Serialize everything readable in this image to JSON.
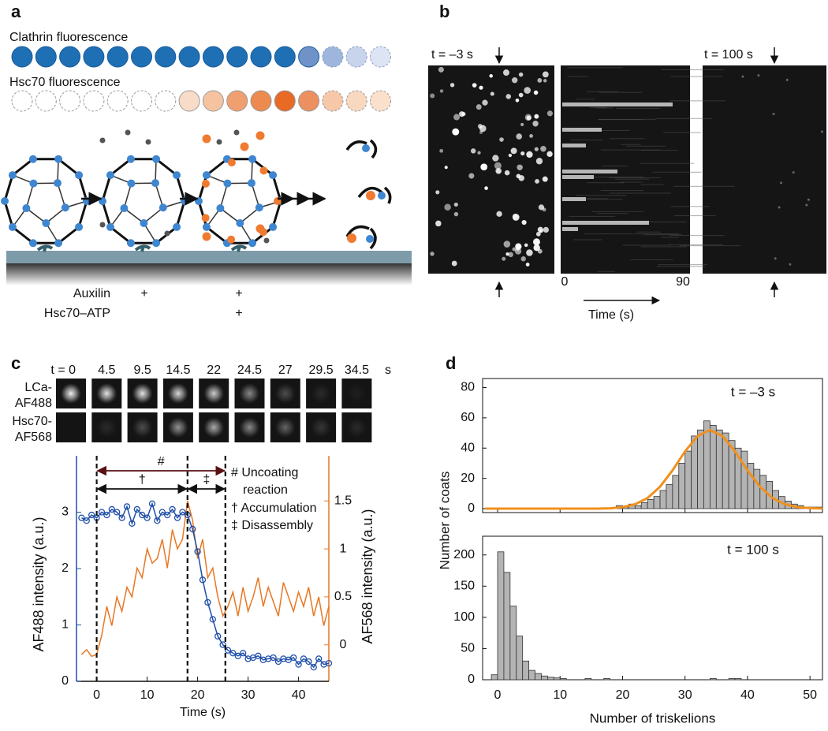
{
  "panel_a": {
    "label": "a",
    "clathrin_title": "Clathrin fluorescence",
    "hsc70_title": "Hsc70 fluorescence",
    "conditions": [
      {
        "name": "Auxilin",
        "step2": "+",
        "step3": "+"
      },
      {
        "name": "Hsc70–ATP",
        "step3": "+"
      }
    ]
  },
  "panel_b": {
    "label": "b",
    "t_start": "t = –3 s",
    "t_end": "t = 100 s",
    "kymo_start": "0",
    "kymo_end": "90",
    "time_label": "Time (s)"
  },
  "panel_c_images": {
    "label": "c",
    "times": [
      "t = 0",
      "4.5",
      "9.5",
      "14.5",
      "22",
      "24.5",
      "27",
      "29.5",
      "34.5"
    ],
    "unit": "s",
    "rows": [
      [
        "LCa-",
        "AF488"
      ],
      [
        "Hsc70-",
        "AF568"
      ]
    ]
  },
  "panel_d": {
    "label": "d"
  },
  "chart_data": [
    {
      "type": "line",
      "xlabel": "Time (s)",
      "ylabel": "AF488 intensity (a.u.)",
      "y2label": "AF568 intensity (a.u.)",
      "xlim": [
        -4,
        46
      ],
      "xticks": [
        0,
        10,
        20,
        30,
        40
      ],
      "ylim": [
        0,
        4
      ],
      "yticks": [
        0,
        1,
        2,
        3
      ],
      "y2lim": [
        -0.38,
        1.97
      ],
      "y2ticks": [
        0,
        0.5,
        1,
        1.5
      ],
      "x": [
        -3,
        -2,
        -1,
        0,
        1,
        2,
        3,
        4,
        5,
        6,
        7,
        8,
        9,
        10,
        11,
        12,
        13,
        14,
        15,
        16,
        17,
        18,
        19,
        20,
        21,
        22,
        23,
        24,
        25,
        26,
        27,
        28,
        29,
        30,
        31,
        32,
        33,
        34,
        35,
        36,
        37,
        38,
        39,
        40,
        41,
        42,
        43,
        44,
        45,
        46
      ],
      "series": [
        {
          "color": "#1f4fa8",
          "values": [
            2.9,
            2.85,
            2.95,
            2.9,
            3.0,
            2.95,
            3.05,
            3.0,
            2.9,
            3.1,
            2.8,
            3.05,
            2.95,
            2.9,
            3.15,
            2.85,
            3.0,
            2.95,
            3.05,
            2.9,
            3.0,
            2.95,
            2.7,
            2.3,
            1.8,
            1.4,
            1.1,
            0.8,
            0.65,
            0.55,
            0.5,
            0.45,
            0.5,
            0.4,
            0.42,
            0.45,
            0.38,
            0.4,
            0.42,
            0.35,
            0.4,
            0.38,
            0.42,
            0.3,
            0.4,
            0.35,
            0.25,
            0.4,
            0.3,
            0.32
          ]
        },
        {
          "color": "#e87722",
          "axis": "y2",
          "values": [
            -0.1,
            -0.05,
            -0.12,
            -0.1,
            0.1,
            0.4,
            0.2,
            0.5,
            0.35,
            0.6,
            0.5,
            0.8,
            0.7,
            1.0,
            0.85,
            0.9,
            1.1,
            0.8,
            1.2,
            1.0,
            1.1,
            1.5,
            1.3,
            0.9,
            1.1,
            0.7,
            0.8,
            0.5,
            0.3,
            0.4,
            0.55,
            0.3,
            0.6,
            0.35,
            0.5,
            0.7,
            0.4,
            0.6,
            0.45,
            0.3,
            0.65,
            0.5,
            0.35,
            0.55,
            0.4,
            0.6,
            0.3,
            0.5,
            0.2,
            0.4
          ]
        }
      ],
      "spans": [
        {
          "symbol": "#",
          "range": [
            0,
            25.5
          ]
        },
        {
          "symbol": "†",
          "range": [
            0,
            18
          ]
        },
        {
          "symbol": "‡",
          "range": [
            18,
            25.5
          ]
        }
      ],
      "legend": [
        "# Uncoating",
        "reaction",
        "† Accumulation",
        "‡ Disassembly"
      ]
    },
    {
      "type": "histogram",
      "annotation": "t = –3 s",
      "ylabel": "Number of coats",
      "color": "#b4b4b4",
      "xlim": [
        -2.4,
        52
      ],
      "xticks": [
        0,
        10,
        20,
        30,
        40,
        50
      ],
      "ylim": [
        -2.6,
        86
      ],
      "yticks": [
        0,
        20,
        40,
        60,
        80
      ],
      "bins": [
        19,
        20,
        21,
        22,
        23,
        24,
        25,
        26,
        27,
        28,
        29,
        30,
        31,
        32,
        33,
        34,
        35,
        36,
        37,
        38,
        39,
        40,
        41,
        42,
        43,
        44,
        45,
        46,
        47,
        48,
        49,
        50,
        51,
        52
      ],
      "counts": [
        2,
        1,
        3,
        2,
        4,
        6,
        8,
        12,
        16,
        22,
        30,
        38,
        48,
        52,
        58,
        55,
        52,
        50,
        45,
        40,
        38,
        30,
        26,
        22,
        18,
        12,
        8,
        5,
        3,
        2,
        1,
        1,
        1
      ],
      "fit": {
        "color": "#f0901e",
        "x": [
          -2,
          0,
          4,
          8,
          12,
          16,
          18,
          20,
          22,
          24,
          26,
          28,
          30,
          32,
          34,
          36,
          38,
          40,
          42,
          44,
          46,
          48,
          50,
          52
        ],
        "values": [
          0,
          0,
          0,
          0,
          0,
          0,
          0.2,
          1.0,
          2.9,
          7.0,
          14.5,
          25.3,
          37.8,
          48.0,
          52,
          48.0,
          37.8,
          25.3,
          14.5,
          7.0,
          2.9,
          1.0,
          0.3,
          0.1
        ]
      }
    },
    {
      "type": "histogram",
      "annotation": "t = 100 s",
      "xlabel": "Number of triskelions",
      "color": "#b4b4b4",
      "xlim": [
        -2.4,
        52
      ],
      "xticks": [
        0,
        10,
        20,
        30,
        40,
        50
      ],
      "ylim": [
        0,
        230
      ],
      "yticks": [
        0,
        50,
        100,
        150,
        200
      ],
      "bins": [
        -1,
        0,
        1,
        2,
        3,
        4,
        5,
        6,
        7,
        8,
        9,
        10,
        11,
        12,
        13,
        14,
        15,
        16,
        17,
        18,
        19,
        20,
        21,
        22,
        23,
        24,
        25,
        26,
        27,
        28,
        29,
        30,
        31,
        32,
        33,
        34,
        35,
        36,
        37,
        38,
        39,
        40
      ],
      "counts": [
        8,
        205,
        172,
        118,
        70,
        30,
        15,
        10,
        6,
        4,
        3,
        2,
        0,
        0,
        0,
        2,
        0,
        0,
        2,
        0,
        0,
        0,
        0,
        0,
        0,
        0,
        0,
        0,
        0,
        0,
        0,
        0,
        0,
        0,
        0,
        2,
        0,
        0,
        2,
        2,
        0
      ]
    }
  ]
}
